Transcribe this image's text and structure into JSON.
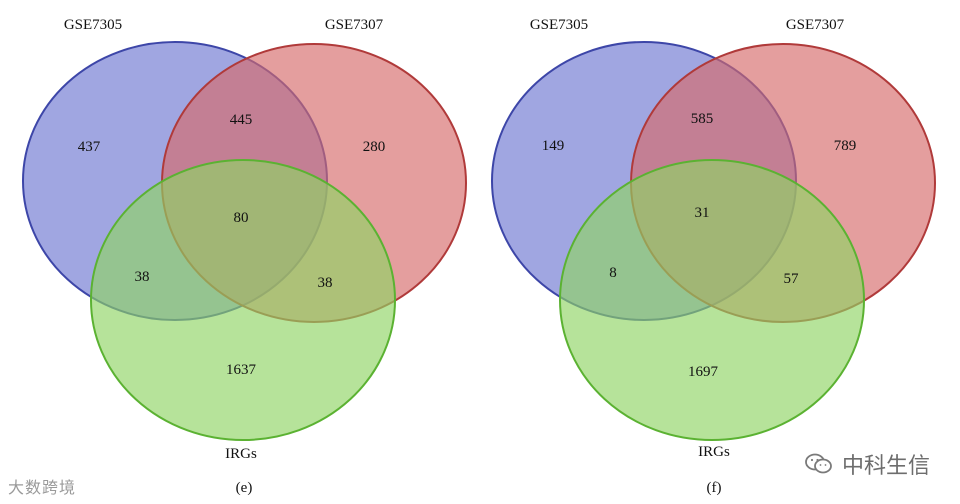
{
  "panels": [
    {
      "id": "e",
      "label": "(e)",
      "sets": {
        "a": "GSE7305",
        "b": "GSE7307",
        "c": "IRGs"
      },
      "regions": {
        "a_only": "437",
        "b_only": "280",
        "c_only": "1637",
        "ab": "445",
        "ac": "38",
        "bc": "38",
        "abc": "80"
      }
    },
    {
      "id": "f",
      "label": "(f)",
      "sets": {
        "a": "GSE7305",
        "b": "GSE7307",
        "c": "IRGs"
      },
      "regions": {
        "a_only": "149",
        "b_only": "789",
        "c_only": "1697",
        "ab": "585",
        "ac": "8",
        "bc": "57",
        "abc": "31"
      }
    }
  ],
  "colors": {
    "set_a": "#7b83d6",
    "set_b": "#d66a6a",
    "set_c": "#8fd464"
  },
  "watermarks": {
    "left": "大数跨境",
    "right": "中科生信",
    "right_icon": "wechat-icon"
  }
}
